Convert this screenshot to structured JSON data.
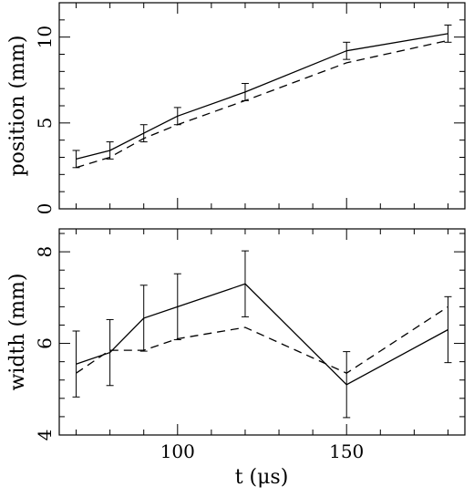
{
  "chart_data": [
    {
      "type": "line",
      "title": "",
      "xlabel": "",
      "ylabel": "position (mm)",
      "xlim": [
        65,
        185
      ],
      "ylim": [
        0,
        12
      ],
      "x": [
        70,
        80,
        90,
        100,
        120,
        150,
        180
      ],
      "yticks": [
        0,
        5,
        10
      ],
      "series": [
        {
          "style": "solid",
          "values": [
            2.9,
            3.4,
            4.4,
            5.4,
            6.8,
            9.2,
            10.2
          ],
          "errors": [
            0.5,
            0.5,
            0.5,
            0.5,
            0.5,
            0.5,
            0.5
          ]
        },
        {
          "style": "dashed",
          "values": [
            2.4,
            3.0,
            4.1,
            4.9,
            6.3,
            8.5,
            9.8
          ]
        }
      ]
    },
    {
      "type": "line",
      "title": "",
      "xlabel": "t (μs)",
      "ylabel": "width (mm)",
      "xlim": [
        65,
        185
      ],
      "ylim": [
        4,
        8.5
      ],
      "x": [
        70,
        80,
        90,
        100,
        120,
        150,
        180
      ],
      "xticks": [
        100,
        150
      ],
      "yticks": [
        4,
        6,
        8
      ],
      "series": [
        {
          "style": "solid",
          "values": [
            5.55,
            5.8,
            6.55,
            6.8,
            7.3,
            5.1,
            6.3
          ],
          "errors": [
            0.72,
            0.72,
            0.72,
            0.72,
            0.72,
            0.72,
            0.72
          ]
        },
        {
          "style": "dashed",
          "values": [
            5.35,
            5.85,
            5.85,
            6.1,
            6.35,
            5.35,
            6.8
          ]
        }
      ]
    }
  ]
}
